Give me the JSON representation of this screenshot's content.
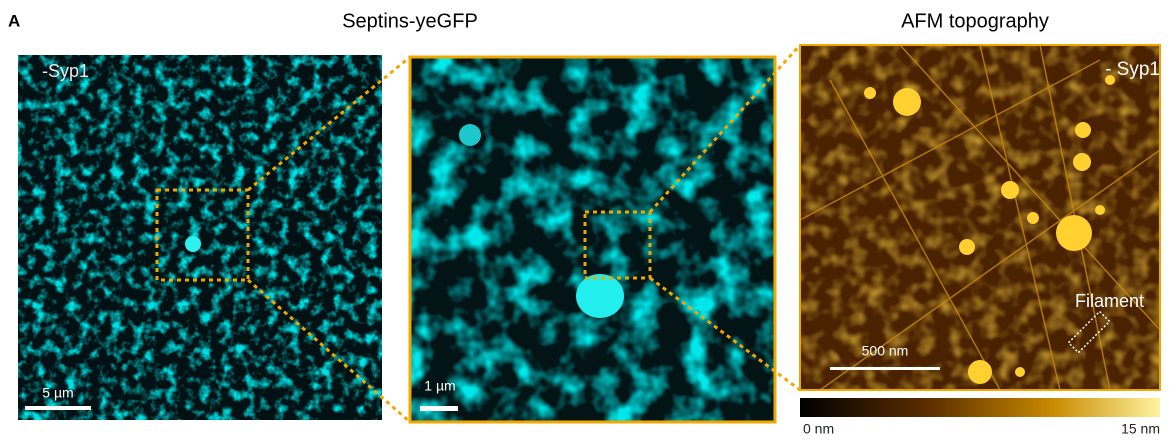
{
  "panel_label": "A",
  "left_title": "Septins-yeGFP",
  "right_title": "AFM topography",
  "panels": [
    {
      "label": "-Syp1",
      "scale_bar": "5 µm"
    },
    {
      "scale_bar": "1 µm"
    },
    {
      "label": "- Syp1",
      "scale_bar": "500 nm",
      "annotation": "Filament"
    }
  ],
  "colorbar": {
    "min_label": "0 nm",
    "max_label": "15 nm"
  }
}
